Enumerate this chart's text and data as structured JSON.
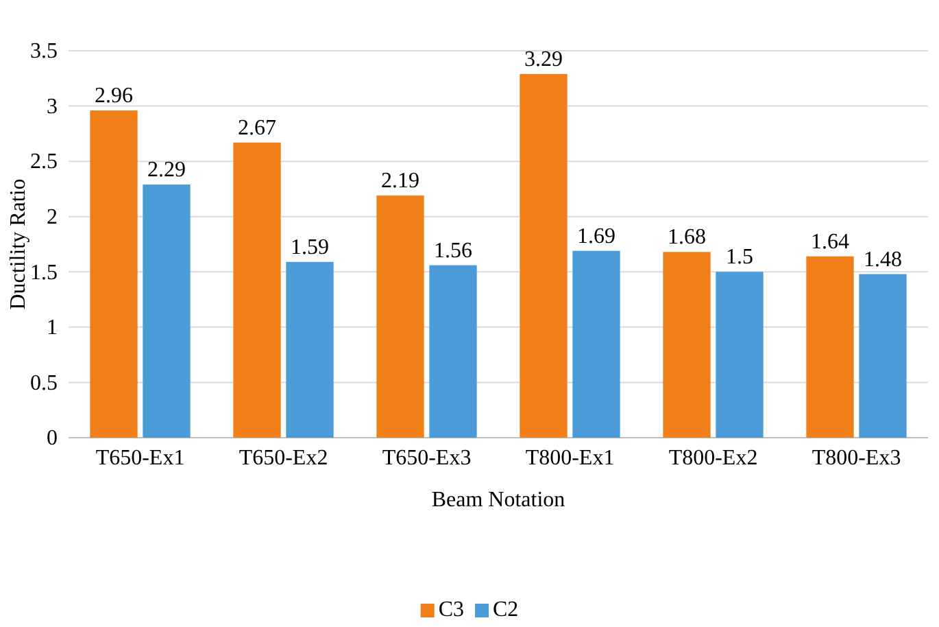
{
  "chart_data": {
    "type": "bar",
    "xlabel": "Beam Notation",
    "ylabel": "Ductility Ratio",
    "categories": [
      "T650-Ex1",
      "T650-Ex2",
      "T650-Ex3",
      "T800-Ex1",
      "T800-Ex2",
      "T800-Ex3"
    ],
    "series": [
      {
        "name": "C3",
        "color": "#f07f1a",
        "values": [
          2.96,
          2.67,
          2.19,
          3.29,
          1.68,
          1.64
        ]
      },
      {
        "name": "C2",
        "color": "#4a9bd8",
        "values": [
          2.29,
          1.59,
          1.56,
          1.69,
          1.5,
          1.48
        ]
      }
    ],
    "ylim": [
      0,
      3.5
    ],
    "yticks": [
      0,
      0.5,
      1,
      1.5,
      2,
      2.5,
      3,
      3.5
    ],
    "grid": "y",
    "data_labels": true,
    "legend": "bottom"
  }
}
